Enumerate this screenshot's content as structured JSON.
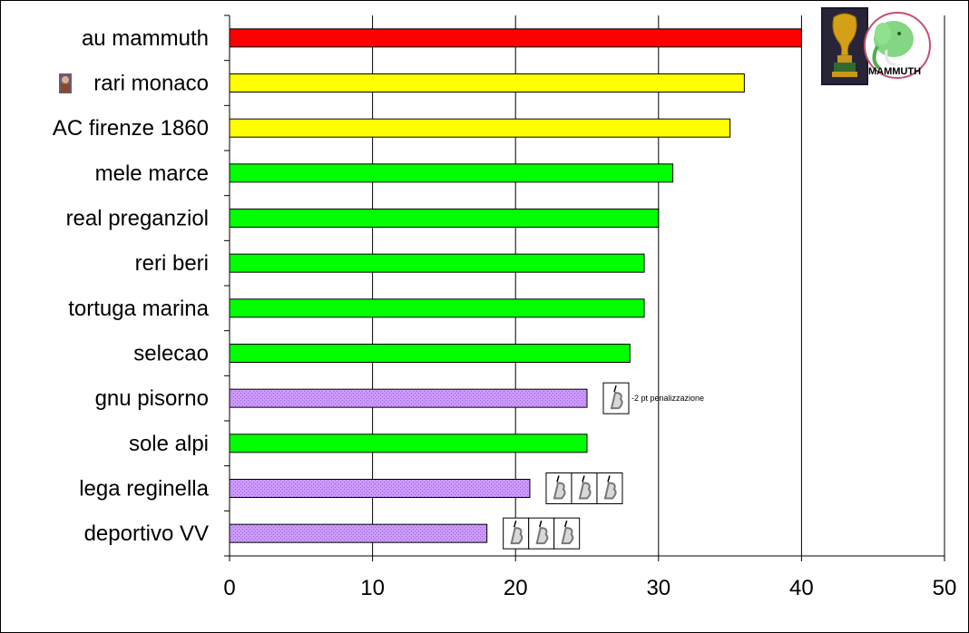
{
  "chart_data": {
    "type": "bar",
    "orientation": "horizontal",
    "categories": [
      "au mammuth",
      "rari monaco",
      "AC firenze 1860",
      "mele marce",
      "real preganziol",
      "reri beri",
      "tortuga marina",
      "selecao",
      "gnu pisorno",
      "sole alpi",
      "lega reginella",
      "deportivo VV"
    ],
    "values": [
      40,
      36,
      35,
      31,
      30,
      29,
      29,
      28,
      25,
      25,
      21,
      18
    ],
    "bar_colors": [
      "#ff0000",
      "#ffff00",
      "#ffff00",
      "#00ff00",
      "#00ff00",
      "#00ff00",
      "#00ff00",
      "#00ff00",
      "#cc99ff",
      "#00ff00",
      "#cc99ff",
      "#cc99ff"
    ],
    "bar_patterned": [
      false,
      false,
      false,
      false,
      false,
      false,
      false,
      false,
      true,
      false,
      true,
      true
    ],
    "penalty_markers": [
      0,
      0,
      0,
      0,
      0,
      0,
      0,
      0,
      1,
      0,
      3,
      3
    ],
    "annotations": [
      {
        "category": "gnu pisorno",
        "text": "-2 pt penalizzazione"
      }
    ],
    "xlim": [
      0,
      50
    ],
    "xticks": [
      0,
      10,
      20,
      30,
      40,
      50
    ],
    "grid": true,
    "legend": "none",
    "title": "",
    "xlabel": "",
    "ylabel": ""
  },
  "logo": {
    "text": "MAMMUTH",
    "icons": [
      "world-cup-trophy-icon",
      "mammoth-icon"
    ]
  },
  "row_icons": [
    {
      "category": "rari monaco",
      "icon": "portrait-icon"
    }
  ]
}
